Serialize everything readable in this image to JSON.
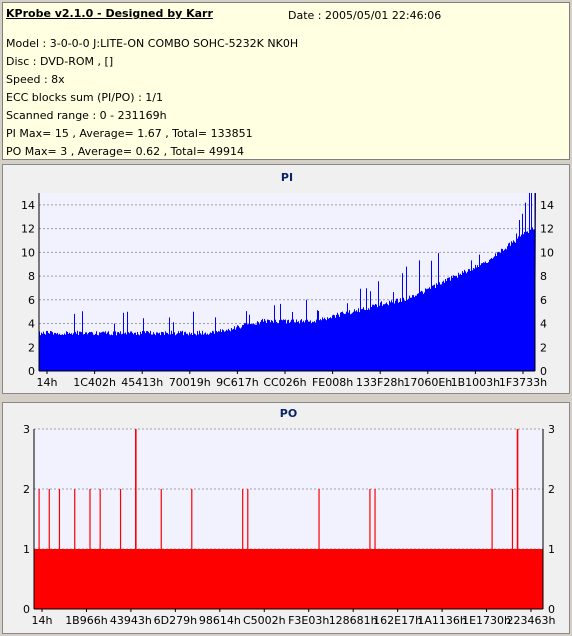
{
  "header": {
    "app_title": "KProbe v2.1.0 - Designed by Karr",
    "date": "Date : 2005/05/01 22:46:06",
    "lines": [
      "Model : 3-0-0-0 J:LITE-ON COMBO SOHC-5232K NK0H",
      "Disc : DVD-ROM ,  []",
      "Speed : 8x",
      "ECC blocks sum (PI/PO) : 1/1",
      "Scanned range : 0 - 231169h",
      "PI Max= 15 , Average= 1.67 , Total= 133851",
      "PO Max= 3 , Average= 0.62 , Total= 49914"
    ]
  },
  "colors": {
    "pi": "#0000ff",
    "po": "#ff0000",
    "plot_bg": "#f2f2ff",
    "grid": "#a0a0a0"
  },
  "chart_data": [
    {
      "type": "area",
      "title": "PI",
      "ylim": [
        0,
        15
      ],
      "y_ticks": [
        0,
        2,
        4,
        6,
        8,
        10,
        12,
        14
      ],
      "x_tick_labels": [
        "14h",
        "1C402h",
        "45413h",
        "70019h",
        "9C617h",
        "CC026h",
        "FE008h",
        "133F28h",
        "17060Eh",
        "1B1003h",
        "1F3733h"
      ],
      "baseline": [
        3,
        3,
        3,
        3,
        3,
        3,
        3,
        3,
        3.5,
        4,
        4,
        4,
        4.5,
        5,
        5.5,
        6,
        7,
        8,
        9,
        10.5,
        12
      ],
      "peaks": [
        5,
        6,
        5,
        5,
        5,
        5,
        5,
        5,
        6,
        6,
        6,
        6,
        7,
        7,
        8,
        9,
        10,
        11,
        12,
        13,
        15
      ],
      "max": 15,
      "grid": true
    },
    {
      "type": "area",
      "title": "PO",
      "ylim": [
        0,
        3
      ],
      "y_ticks": [
        0,
        1,
        2,
        3
      ],
      "x_tick_labels": [
        "14h",
        "1B966h",
        "43943h",
        "6D279h",
        "98614h",
        "C5002h",
        "F3E03h",
        "128681h",
        "162E17h",
        "1A1136h",
        "1E1730h",
        "223463h"
      ],
      "baseline": 1,
      "spikes_to_2": [
        0.01,
        0.03,
        0.05,
        0.08,
        0.11,
        0.13,
        0.17,
        0.25,
        0.31,
        0.41,
        0.42,
        0.56,
        0.66,
        0.67,
        0.9,
        0.94
      ],
      "spikes_to_3": [
        0.2,
        0.95
      ],
      "max": 3,
      "grid": true
    }
  ]
}
